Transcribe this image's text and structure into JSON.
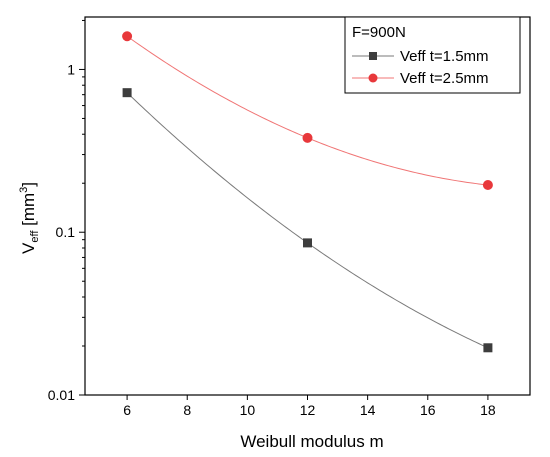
{
  "chart_data": {
    "type": "scatter",
    "title": "",
    "xlabel": "Weibull modulus m",
    "ylabel": {
      "main": "V",
      "sub": "eff",
      "unit_open": " [mm",
      "unit_sup": "3",
      "unit_close": "]"
    },
    "xlim": [
      4.6,
      19.4
    ],
    "ylim": [
      0.01,
      2.1
    ],
    "yscale": "log",
    "x_ticks": [
      6,
      8,
      10,
      12,
      14,
      16,
      18
    ],
    "y_ticks": [
      0.01,
      0.1,
      1
    ],
    "y_tick_labels": [
      "0.01",
      "0.1",
      "1"
    ],
    "grid": false,
    "legend_position": "top-right",
    "legend_title": "F=900N",
    "series": [
      {
        "name": "Veff t=1.5mm",
        "marker": "square",
        "color": "#3d3d3d",
        "line_color": "#7a7a7a",
        "x": [
          6,
          12,
          18
        ],
        "y": [
          0.72,
          0.086,
          0.0195
        ]
      },
      {
        "name": "Veff t=2.5mm",
        "marker": "circle",
        "color": "#e8383b",
        "line_color": "#f07575",
        "x": [
          6,
          12,
          18
        ],
        "y": [
          1.6,
          0.38,
          0.195
        ]
      }
    ]
  }
}
